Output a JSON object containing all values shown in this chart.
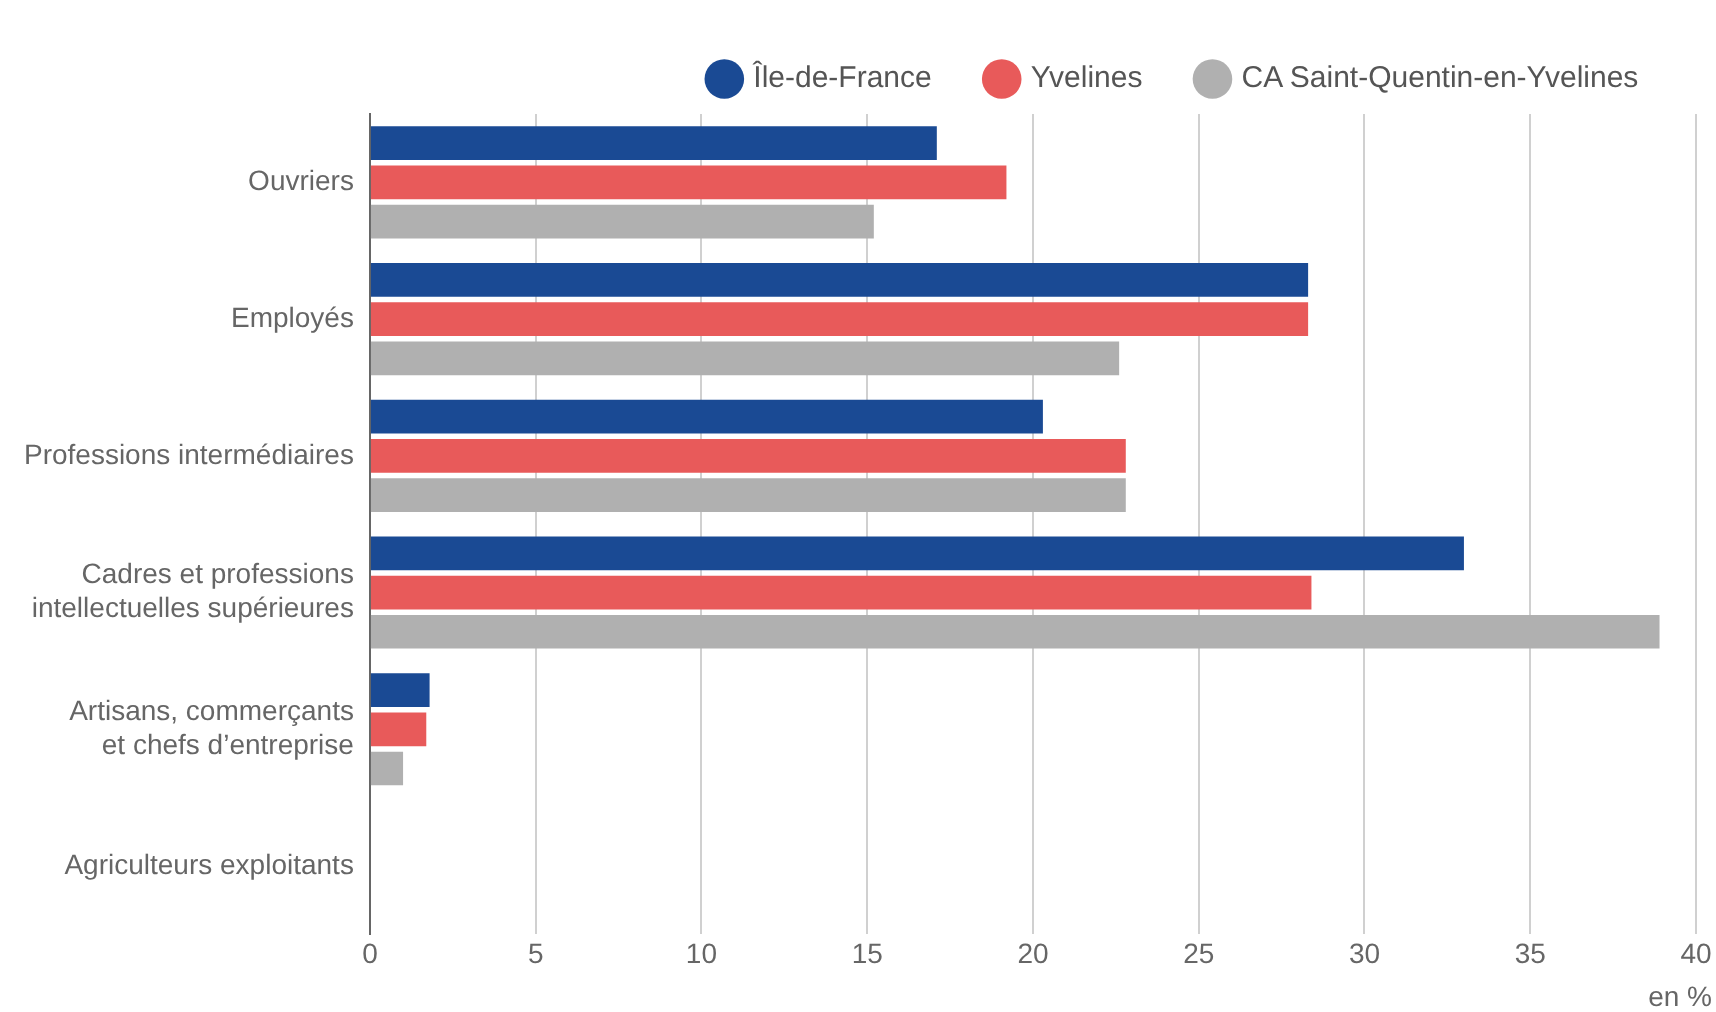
{
  "chart_data": {
    "type": "bar",
    "orientation": "horizontal",
    "xlabel": "en %",
    "categories": [
      "Ouvriers",
      "Employés",
      "Professions intermédiaires",
      "Cadres et professions\nintellectuelles supérieures",
      "Artisans, commerçants\net chefs d’entreprise",
      "Agriculteurs exploitants"
    ],
    "series": [
      {
        "name": "Île-de-France",
        "color": "#1a4a94",
        "values": [
          17.1,
          28.3,
          20.3,
          33.0,
          1.8,
          0
        ]
      },
      {
        "name": "Yvelines",
        "color": "#e85a5a",
        "values": [
          19.2,
          28.3,
          22.8,
          28.4,
          1.7,
          0
        ]
      },
      {
        "name": "CA Saint-Quentin-en-Yvelines",
        "color": "#b0b0b0",
        "values": [
          15.2,
          22.6,
          22.8,
          38.9,
          1.0,
          0
        ]
      }
    ],
    "xlim": [
      0,
      40
    ],
    "xticks": [
      0,
      5,
      10,
      15,
      20,
      25,
      30,
      35,
      40
    ],
    "grid": "x",
    "legend": "top right"
  }
}
